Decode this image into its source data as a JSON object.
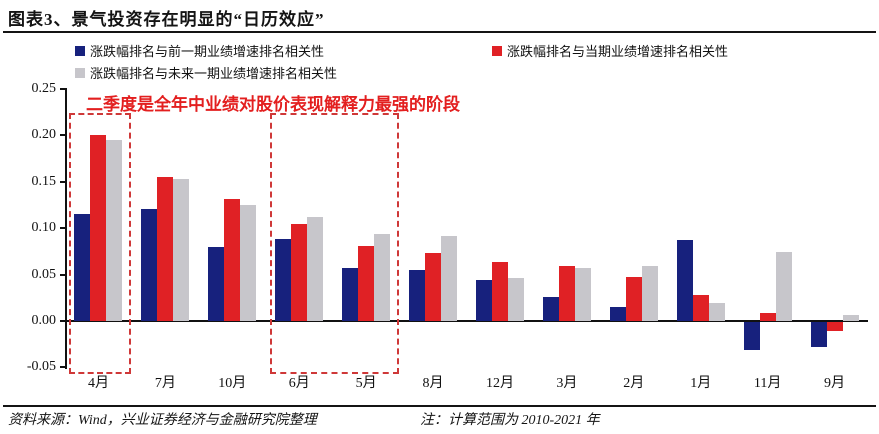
{
  "figure": {
    "title": "图表3、景气投资存在明显的“日历效应”",
    "source_note": "资料来源：Wind，兴业证券经济与金融研究院整理",
    "calc_note": "注：计算范围为 2010-2021 年"
  },
  "legend": {
    "items": [
      {
        "label": "涨跌幅排名与前一期业绩增速排名相关性",
        "color": "#17217d"
      },
      {
        "label": "涨跌幅排名与当期业绩增速排名相关性",
        "color": "#e02125"
      },
      {
        "label": "涨跌幅排名与未来一期业绩增速排名相关性",
        "color": "#c7c6cb"
      }
    ]
  },
  "chart_data": {
    "type": "bar",
    "title": "图表3、景气投资存在明显的“日历效应”",
    "categories": [
      "4月",
      "7月",
      "10月",
      "6月",
      "5月",
      "8月",
      "12月",
      "3月",
      "2月",
      "1月",
      "11月",
      "9月"
    ],
    "series": [
      {
        "name": "涨跌幅排名与前一期业绩增速排名相关性",
        "color": "#17217d",
        "values": [
          0.115,
          0.121,
          0.08,
          0.088,
          0.057,
          0.055,
          0.044,
          0.026,
          0.015,
          0.087,
          -0.03,
          -0.027
        ]
      },
      {
        "name": "涨跌幅排名与当期业绩增速排名相关性",
        "color": "#e02125",
        "values": [
          0.2,
          0.155,
          0.132,
          0.105,
          0.081,
          0.073,
          0.064,
          0.059,
          0.047,
          0.028,
          0.009,
          -0.01
        ]
      },
      {
        "name": "涨跌幅排名与未来一期业绩增速排名相关性",
        "color": "#c7c6cb",
        "values": [
          0.195,
          0.153,
          0.125,
          0.112,
          0.094,
          0.092,
          0.046,
          0.057,
          0.059,
          0.019,
          0.074,
          0.007
        ]
      }
    ],
    "ylim": [
      -0.05,
      0.25
    ],
    "yticks": [
      0.25,
      0.2,
      0.15,
      0.1,
      0.05,
      0.0,
      -0.05
    ],
    "grid": false,
    "legend_position": "top",
    "annotation": "二季度是全年中业绩对股价表现解释力最强的阶段",
    "highlight_boxes": [
      {
        "first_group": 0,
        "last_group": 0
      },
      {
        "first_group": 3,
        "last_group": 4
      }
    ]
  }
}
